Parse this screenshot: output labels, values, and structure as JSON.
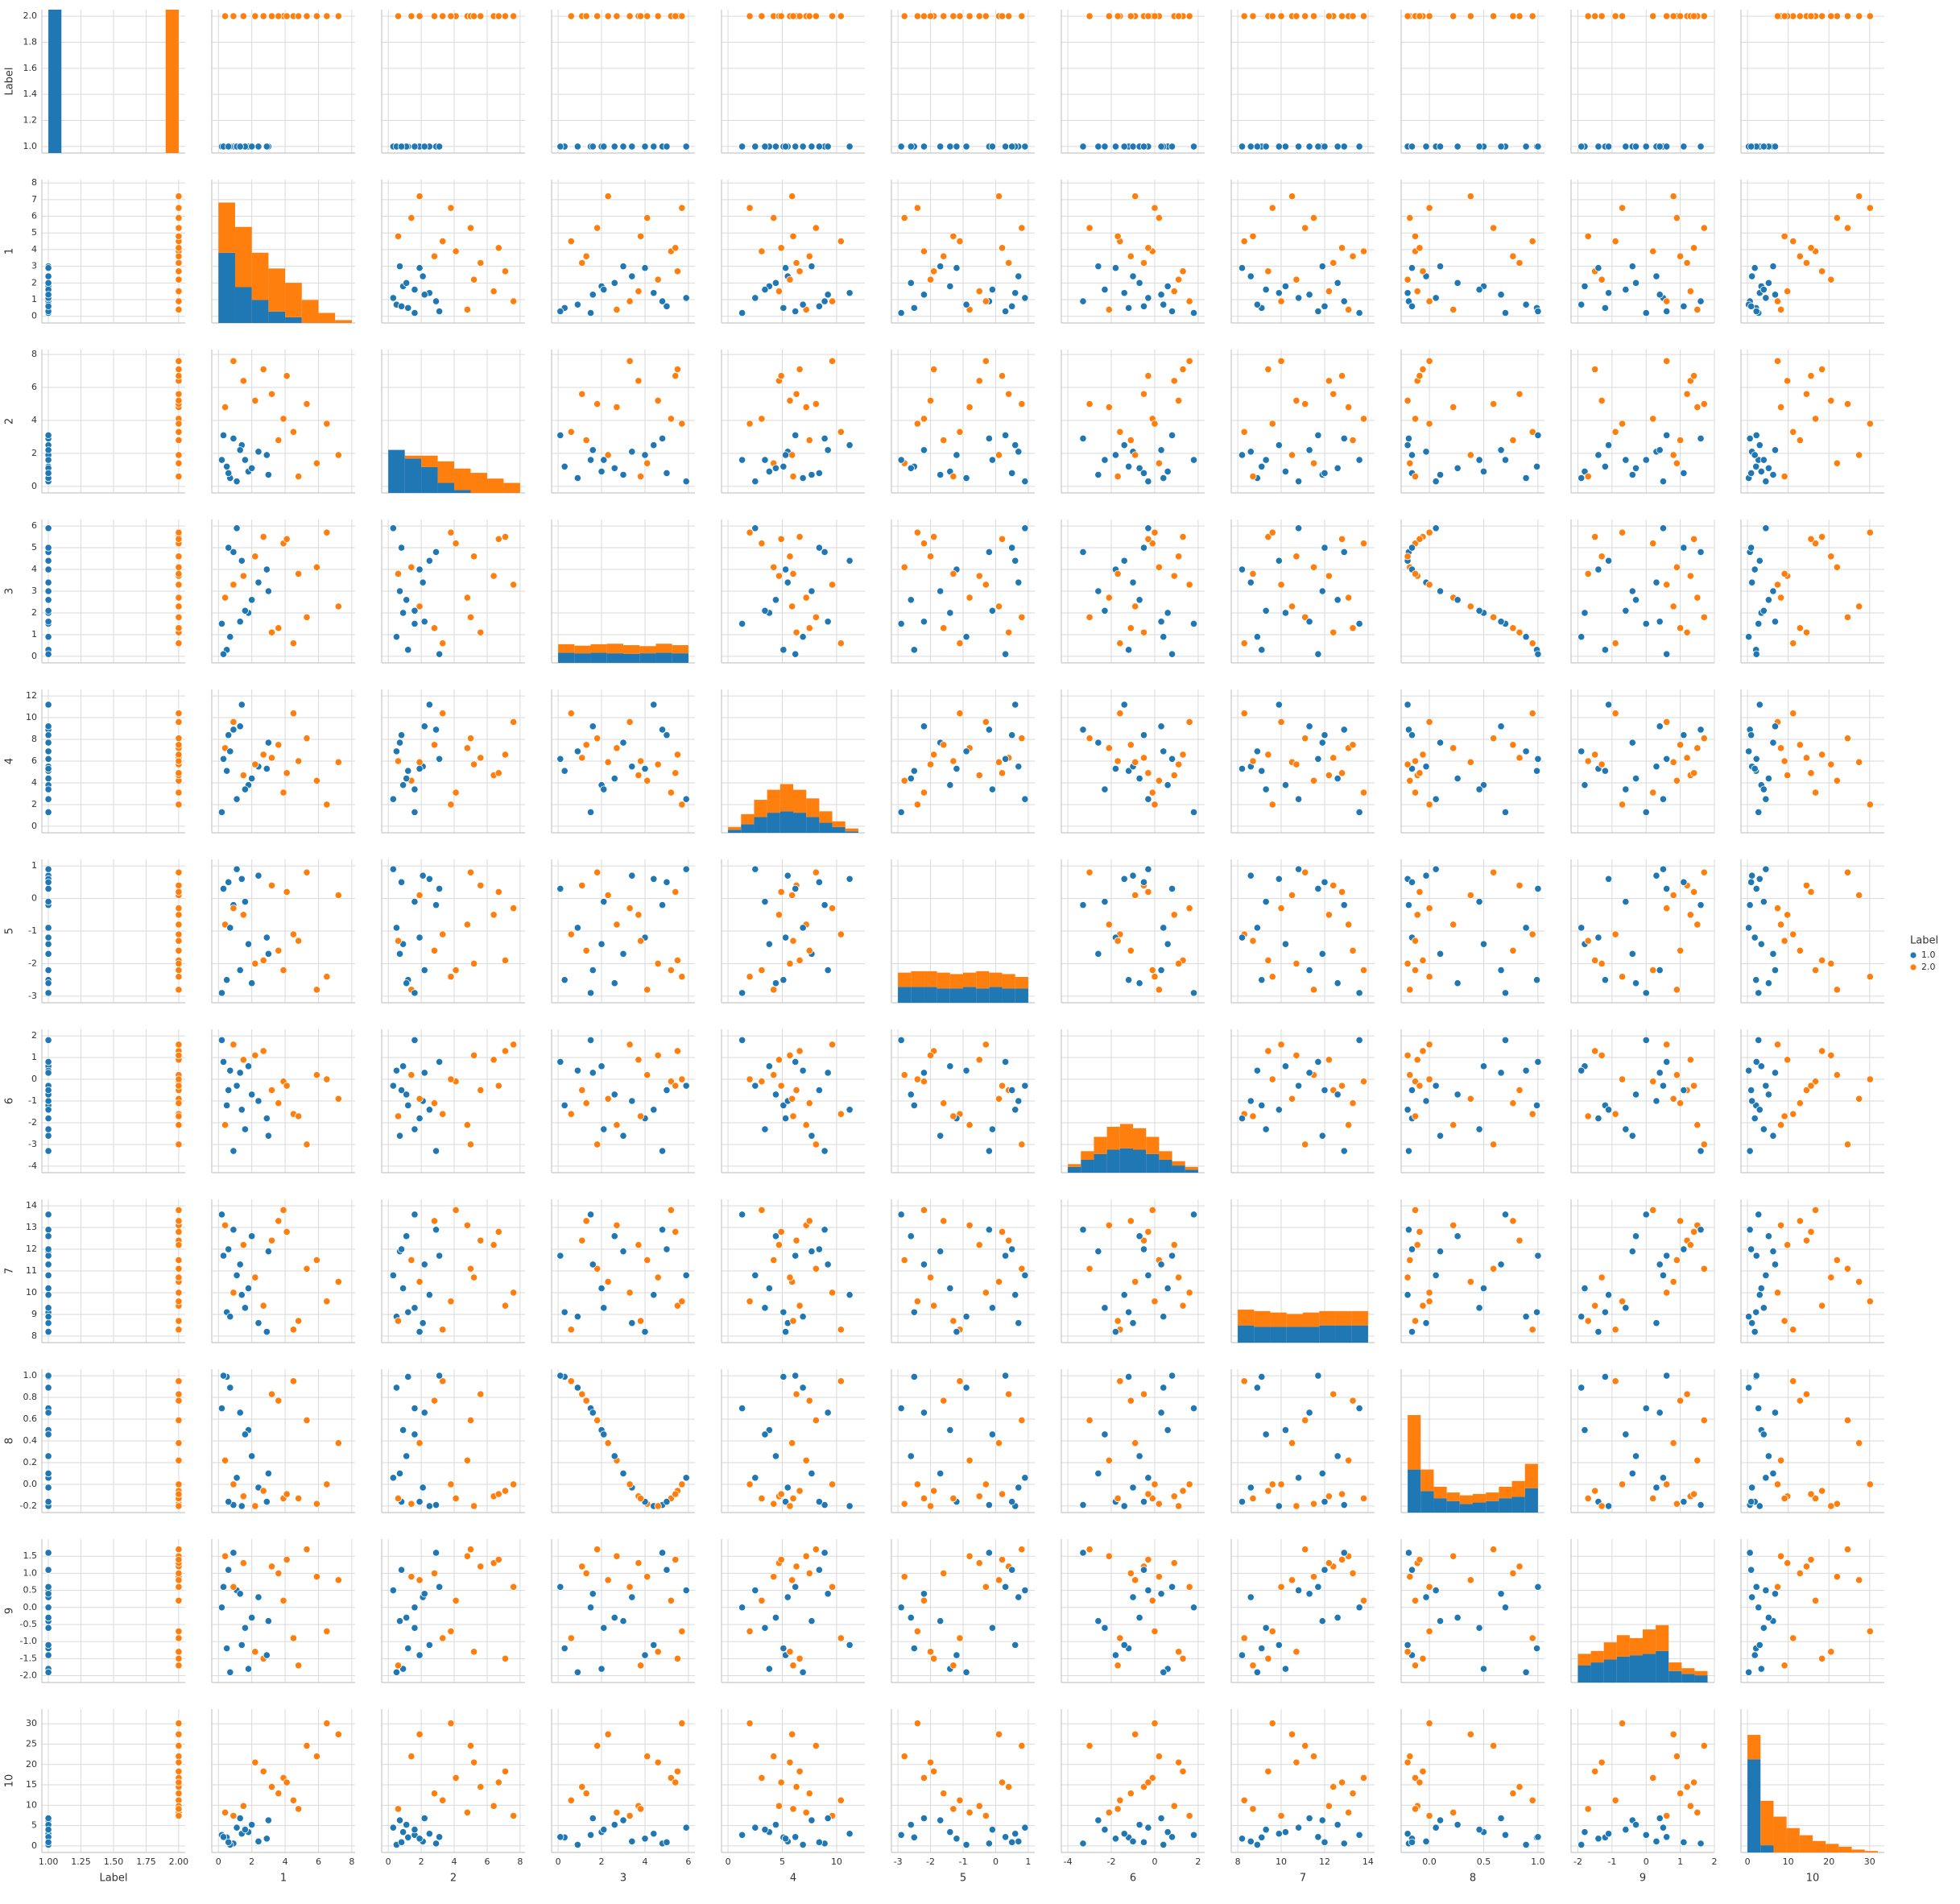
{
  "chart_data": {
    "type": "pairplot",
    "hue": {
      "title": "Label",
      "levels": [
        {
          "name": "1.0",
          "value": 1,
          "color": "#1f77b4"
        },
        {
          "name": "2.0",
          "value": 2,
          "color": "#ff7f0e"
        }
      ]
    },
    "grid": true,
    "diag_ylim": [
      0,
      600
    ],
    "variables": [
      {
        "name": "Label",
        "lim": [
          0.95,
          2.05
        ],
        "xticks": [
          {
            "value": 1,
            "label": "1.00"
          },
          1.25,
          {
            "value": 1.5,
            "label": "1.50"
          },
          1.75,
          {
            "value": 2,
            "label": "2.00"
          }
        ],
        "yticks": [
          {
            "value": 1,
            "label": "1.0"
          },
          1.2,
          1.4,
          1.6,
          1.8,
          {
            "value": 2,
            "label": "2.0"
          }
        ],
        "hist": {
          "bins": [
            1,
            1.1,
            1.2,
            1.3,
            1.4,
            1.5,
            1.6,
            1.7,
            1.8,
            1.9,
            2
          ],
          "counts": [
            [
              600,
              0,
              0,
              0,
              0,
              0,
              0,
              0,
              0,
              0
            ],
            [
              0,
              0,
              0,
              0,
              0,
              0,
              0,
              0,
              0,
              600
            ]
          ]
        }
      },
      {
        "name": "1",
        "lim": [
          -0.4,
          8.2
        ],
        "xticks": [
          0,
          2,
          4,
          6,
          8
        ],
        "yticks": [
          0,
          1,
          2,
          3,
          4,
          5,
          6,
          7,
          8
        ],
        "hist": {
          "bins": [
            0,
            1,
            2,
            3,
            4,
            5,
            6,
            7,
            8
          ],
          "counts": [
            [
              294,
              150,
              96,
              48,
              24,
              0,
              0,
              0
            ],
            [
              210,
              252,
              198,
              180,
              144,
              96,
              42,
              12
            ]
          ]
        }
      },
      {
        "name": "2",
        "lim": [
          -0.4,
          8.3
        ],
        "xticks": [
          0,
          2,
          4,
          6,
          8
        ],
        "yticks": [
          0,
          2,
          4,
          6,
          8
        ],
        "hist": {
          "bins": [
            0,
            1,
            2,
            3,
            4,
            5,
            6,
            7,
            8
          ],
          "counts": [
            [
              180,
              144,
              108,
              42,
              12,
              0,
              0,
              0
            ],
            [
              0,
              12,
              48,
              90,
              90,
              84,
              60,
              42
            ]
          ]
        }
      },
      {
        "name": "3",
        "lim": [
          -0.3,
          6.3
        ],
        "xticks": [
          0,
          2,
          4,
          6
        ],
        "yticks": [
          0,
          1,
          2,
          3,
          4,
          5,
          6
        ],
        "hist": {
          "bins": [
            0,
            0.75,
            1.5,
            2.25,
            3,
            3.75,
            4.5,
            5.25,
            6
          ],
          "counts": [
            [
              42,
              40,
              42,
              40,
              38,
              40,
              42,
              40
            ],
            [
              36,
              32,
              36,
              40,
              36,
              30,
              38,
              34
            ]
          ]
        }
      },
      {
        "name": "4",
        "lim": [
          -0.6,
          12.6
        ],
        "xticks": [
          0,
          5,
          10
        ],
        "yticks": [
          0,
          2,
          4,
          6,
          8,
          10,
          12
        ],
        "hist": {
          "bins": [
            0,
            1.2,
            2.4,
            3.6,
            4.8,
            6,
            7.2,
            8.4,
            9.6,
            10.8,
            12
          ],
          "counts": [
            [
              12,
              36,
              66,
              84,
              90,
              84,
              66,
              42,
              24,
              6
            ],
            [
              12,
              42,
              72,
              96,
              114,
              96,
              78,
              48,
              24,
              12
            ]
          ]
        }
      },
      {
        "name": "5",
        "lim": [
          -3.2,
          1.2
        ],
        "xticks": [
          -3,
          -2,
          -1,
          0,
          1
        ],
        "yticks": [
          -3,
          -2,
          -1,
          0,
          1
        ],
        "hist": {
          "bins": [
            -3,
            -2.6,
            -2.2,
            -1.8,
            -1.4,
            -1,
            -0.6,
            -0.2,
            0.2,
            0.6,
            1
          ],
          "counts": [
            [
              66,
              66,
              66,
              60,
              60,
              66,
              60,
              66,
              60,
              60
            ],
            [
              60,
              66,
              66,
              66,
              60,
              60,
              72,
              60,
              60,
              48
            ]
          ]
        }
      },
      {
        "name": "6",
        "lim": [
          -4.3,
          2.3
        ],
        "xticks": [
          -4,
          -2,
          0,
          2
        ],
        "yticks": [
          -4,
          -3,
          -2,
          -1,
          0,
          1,
          2
        ],
        "hist": {
          "bins": [
            -4,
            -3.4,
            -2.8,
            -2.2,
            -1.6,
            -1,
            -0.4,
            0.2,
            0.8,
            1.4,
            2
          ],
          "counts": [
            [
              24,
              54,
              78,
              96,
              102,
              96,
              78,
              54,
              30,
              12
            ],
            [
              12,
              36,
              72,
              96,
              102,
              90,
              72,
              36,
              18,
              12
            ]
          ]
        }
      },
      {
        "name": "7",
        "lim": [
          7.7,
          14.3
        ],
        "xticks": [
          8,
          10,
          12,
          14
        ],
        "yticks": [
          8,
          9,
          10,
          11,
          12,
          13,
          14
        ],
        "hist": {
          "bins": [
            8,
            8.75,
            9.5,
            10.25,
            11,
            11.75,
            12.5,
            13.25,
            14
          ],
          "counts": [
            [
              72,
              66,
              66,
              66,
              66,
              72,
              72,
              72
            ],
            [
              66,
              66,
              60,
              54,
              60,
              60,
              60,
              60
            ]
          ]
        }
      },
      {
        "name": "8",
        "lim": [
          -0.26,
          1.06
        ],
        "xticks": [
          {
            "value": 0,
            "label": "0.0"
          },
          0.5,
          {
            "value": 1,
            "label": "1.0"
          }
        ],
        "yticks": [
          -0.2,
          {
            "value": 0,
            "label": "0.0"
          },
          0.2,
          0.4,
          0.6,
          0.8,
          {
            "value": 1,
            "label": "1.0"
          }
        ],
        "hist": {
          "bins": [
            -0.2,
            -0.08,
            0.04,
            0.16,
            0.28,
            0.4,
            0.52,
            0.64,
            0.76,
            0.88,
            1
          ],
          "counts": [
            [
              180,
              90,
              60,
              48,
              36,
              42,
              48,
              60,
              66,
              102
            ],
            [
              228,
              90,
              48,
              36,
              36,
              36,
              36,
              48,
              66,
              102
            ]
          ]
        }
      },
      {
        "name": "9",
        "lim": [
          -2.2,
          2.0
        ],
        "xticks": [
          -2,
          -1,
          0,
          1,
          2
        ],
        "yticks": [
          {
            "value": -2,
            "label": "-2.0"
          },
          -1.5,
          {
            "value": -1,
            "label": "-1.0"
          },
          -0.5,
          {
            "value": 0,
            "label": "0.0"
          },
          0.5,
          {
            "value": 1,
            "label": "1.0"
          },
          1.5
        ],
        "hist": {
          "bins": [
            -2,
            -1.62,
            -1.24,
            -0.86,
            -0.48,
            -0.1,
            0.28,
            0.66,
            1.04,
            1.42,
            1.8
          ],
          "counts": [
            [
              72,
              84,
              96,
              108,
              114,
              120,
              132,
              48,
              36,
              30
            ],
            [
              48,
              48,
              72,
              90,
              72,
              102,
              108,
              36,
              24,
              18
            ]
          ]
        }
      },
      {
        "name": "10",
        "lim": [
          -1.6,
          33.6
        ],
        "xticks": [
          0,
          10,
          20,
          30
        ],
        "yticks": [
          0,
          5,
          10,
          15,
          20,
          25,
          30
        ],
        "hist": {
          "bins": [
            0,
            3.2,
            6.4,
            9.6,
            12.8,
            16,
            19.2,
            22.4,
            25.6,
            28.8,
            32
          ],
          "counts": [
            [
              390,
              30,
              0,
              0,
              0,
              0,
              0,
              0,
              0,
              0
            ],
            [
              102,
              186,
              150,
              102,
              72,
              48,
              36,
              24,
              12,
              6
            ]
          ]
        }
      }
    ],
    "observations": [
      [
        1,
        0.5,
        1.2,
        0.3,
        5.1,
        -2.5,
        -1.2,
        9.1,
        0.99,
        -1.2,
        2.1
      ],
      [
        2,
        3.2,
        5.6,
        1.1,
        6.3,
        0.4,
        -0.5,
        12.4,
        0.83,
        1.2,
        14.5
      ],
      [
        1,
        1.8,
        0.9,
        2.0,
        3.8,
        -1.4,
        0.6,
        10.2,
        0.5,
        -1.8,
        3.4
      ],
      [
        2,
        0.4,
        4.8,
        2.7,
        7.2,
        -0.8,
        -2.1,
        13.1,
        0.22,
        1.5,
        8.2
      ],
      [
        1,
        2.4,
        2.1,
        3.4,
        5.5,
        0.7,
        -1.0,
        8.6,
        -0.03,
        0.3,
        1.1
      ],
      [
        2,
        5.9,
        1.4,
        4.1,
        4.2,
        -2.8,
        0.2,
        11.5,
        -0.18,
        0.9,
        22.0
      ],
      [
        1,
        0.9,
        2.9,
        4.8,
        8.9,
        -0.2,
        -3.3,
        12.9,
        -0.19,
        1.6,
        0.6
      ],
      [
        2,
        2.7,
        7.1,
        5.5,
        6.6,
        -1.9,
        1.3,
        9.4,
        -0.06,
        -1.5,
        18.3
      ],
      [
        1,
        1.1,
        0.3,
        5.9,
        2.5,
        0.9,
        -0.3,
        10.8,
        0.06,
        0.5,
        4.5
      ],
      [
        2,
        4.5,
        3.3,
        0.6,
        10.4,
        -1.1,
        -1.6,
        8.3,
        0.95,
        -0.9,
        11.2
      ],
      [
        1,
        0.2,
        1.6,
        1.5,
        1.3,
        -2.9,
        1.8,
        13.6,
        0.7,
        0.0,
        2.7
      ],
      [
        2,
        7.2,
        1.9,
        2.3,
        5.9,
        0.1,
        -0.9,
        10.5,
        0.38,
        0.8,
        27.4
      ],
      [
        1,
        3.0,
        0.7,
        3.0,
        7.7,
        -1.7,
        -2.6,
        11.9,
        0.1,
        -0.4,
        6.3
      ],
      [
        2,
        1.5,
        6.4,
        3.7,
        4.7,
        -0.5,
        0.9,
        12.2,
        -0.11,
        1.3,
        9.8
      ],
      [
        1,
        1.4,
        2.5,
        4.4,
        11.2,
        0.6,
        -1.4,
        9.9,
        -0.2,
        -1.1,
        3.0
      ],
      [
        2,
        3.9,
        4.1,
        5.2,
        3.1,
        -2.2,
        -0.1,
        13.8,
        -0.13,
        0.2,
        16.7
      ],
      [
        1,
        0.7,
        0.5,
        0.9,
        6.9,
        -0.9,
        0.4,
        8.9,
        0.89,
        -1.9,
        0.3
      ],
      [
        2,
        5.3,
        5.0,
        1.8,
        8.1,
        0.8,
        -3.0,
        11.1,
        0.59,
        1.7,
        24.6
      ],
      [
        1,
        2.0,
        1.1,
        2.6,
        4.4,
        -2.6,
        -0.7,
        12.6,
        0.26,
        -0.3,
        5.2
      ],
      [
        2,
        0.9,
        7.6,
        3.3,
        9.6,
        -0.3,
        1.6,
        10.0,
        0.0,
        0.6,
        7.4
      ],
      [
        1,
        2.9,
        1.9,
        4.0,
        5.3,
        -1.2,
        -1.8,
        8.2,
        -0.16,
        -1.4,
        1.8
      ],
      [
        2,
        6.5,
        3.8,
        5.7,
        2.0,
        -2.4,
        0.0,
        9.6,
        0.0,
        -0.7,
        30.1
      ],
      [
        1,
        0.3,
        3.1,
        0.1,
        6.2,
        0.3,
        0.8,
        11.7,
        1.0,
        0.6,
        2.2
      ],
      [
        2,
        3.6,
        2.8,
        1.3,
        7.5,
        -1.6,
        -1.1,
        13.3,
        0.77,
        1.0,
        12.9
      ],
      [
        1,
        1.6,
        1.6,
        2.1,
        3.4,
        -0.1,
        -2.3,
        9.3,
        0.46,
        -0.6,
        4.0
      ],
      [
        2,
        2.2,
        5.2,
        4.6,
        5.7,
        -2.0,
        1.1,
        10.7,
        -0.2,
        -1.3,
        20.5
      ],
      [
        1,
        0.6,
        0.8,
        5.0,
        8.4,
        0.5,
        -0.5,
        12.0,
        -0.16,
        1.1,
        0.9
      ],
      [
        2,
        4.8,
        0.6,
        3.8,
        6.0,
        -1.3,
        -1.7,
        8.7,
        -0.13,
        -1.7,
        9.1
      ],
      [
        1,
        1.3,
        2.2,
        1.6,
        9.2,
        -2.2,
        0.3,
        11.3,
        0.66,
        0.4,
        6.8
      ],
      [
        2,
        4.1,
        6.7,
        5.4,
        4.9,
        0.2,
        -0.3,
        12.8,
        -0.09,
        1.4,
        15.6
      ]
    ]
  }
}
